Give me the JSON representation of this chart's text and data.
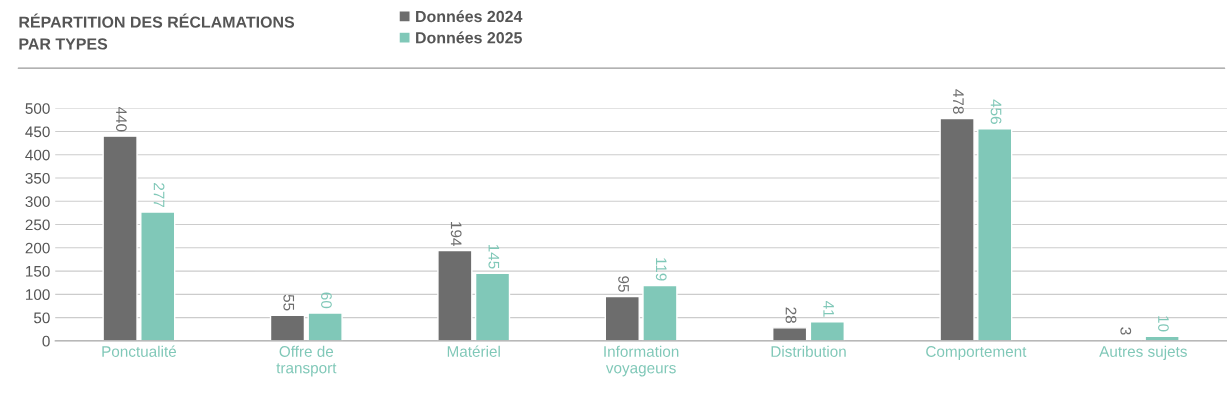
{
  "chart_data": {
    "type": "bar",
    "title": "RÉPARTITION DES RÉCLAMATIONS\nPAR TYPES",
    "categories": [
      "Ponctualité",
      "Offre de\ntransport",
      "Matériel",
      "Information\nvoyageurs",
      "Distribution",
      "Comportement",
      "Autres sujets"
    ],
    "series": [
      {
        "name": "Données 2024",
        "color": "#6d6d6d",
        "values": [
          440,
          55,
          194,
          95,
          28,
          478,
          3
        ]
      },
      {
        "name": "Données 2025",
        "color": "#80c8b8",
        "values": [
          277,
          60,
          145,
          119,
          41,
          456,
          10
        ]
      }
    ],
    "ylim": [
      0,
      500
    ],
    "yticks": [
      0,
      50,
      100,
      150,
      200,
      250,
      300,
      350,
      400,
      450,
      500
    ],
    "grid": "y",
    "legend": "top",
    "data_labels": true
  }
}
